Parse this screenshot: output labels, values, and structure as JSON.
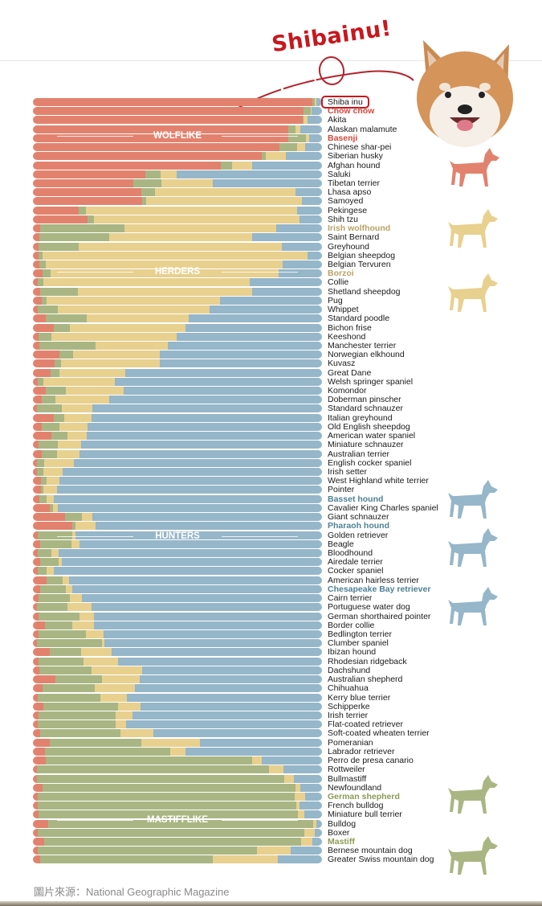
{
  "header": {
    "title": "Shibainu!"
  },
  "source": "圖片來源：National Geographic Magazine",
  "colors": {
    "wolf": "#e2826e",
    "mastiff": "#a9b683",
    "herder": "#e8d08f",
    "hunter": "#96b6c9"
  },
  "chart_data": {
    "type": "bar",
    "orientation": "horizontal-stacked-100",
    "series_names": [
      "Wolflike",
      "Mastifflike",
      "Herders",
      "Hunters"
    ],
    "group_labels": [
      "WOLFLIKE",
      "HERDERS",
      "HUNTERS",
      "MASTIFFLIKE"
    ],
    "xlim": [
      0,
      100
    ],
    "rows": [
      {
        "breed": "Shiba inu",
        "values": [
          96.7,
          0.7,
          0.7,
          1.9
        ],
        "boxed": true
      },
      {
        "breed": "Chow chow",
        "values": [
          93.7,
          2.3,
          0.5,
          3.5
        ],
        "highlight": "wolf"
      },
      {
        "breed": "Akita",
        "values": [
          93.2,
          0.3,
          1.4,
          5.1
        ]
      },
      {
        "breed": "Alaskan malamute",
        "values": [
          88.3,
          2.6,
          1.7,
          7.4
        ]
      },
      {
        "breed": "Basenji",
        "values": [
          88.3,
          6.1,
          1.1,
          4.5
        ],
        "highlight": "wolf"
      },
      {
        "breed": "Chinese shar-pei",
        "values": [
          85.3,
          6.1,
          2.9,
          5.7
        ]
      },
      {
        "breed": "Siberian husky",
        "values": [
          79.1,
          1.4,
          6.9,
          12.6
        ]
      },
      {
        "breed": "Afghan hound",
        "values": [
          65.1,
          3.7,
          6.9,
          24.3
        ]
      },
      {
        "breed": "Saluki",
        "values": [
          39.0,
          5.2,
          5.4,
          50.4
        ]
      },
      {
        "breed": "Tibetan terrier",
        "values": [
          34.7,
          9.8,
          17.8,
          37.7
        ]
      },
      {
        "breed": "Lhasa apso",
        "values": [
          37.6,
          4.7,
          48.4,
          9.3
        ]
      },
      {
        "breed": "Samoyed",
        "values": [
          37.8,
          1.5,
          53.8,
          6.9
        ]
      },
      {
        "breed": "Pekingese",
        "values": [
          15.9,
          2.4,
          73.1,
          8.6
        ]
      },
      {
        "breed": "Shih tzu",
        "values": [
          18.8,
          2.3,
          71.0,
          7.9
        ]
      },
      {
        "breed": "Irish wolfhound",
        "values": [
          2.5,
          29.3,
          52.4,
          15.8
        ],
        "highlight": "herder"
      },
      {
        "breed": "Saint Bernard",
        "values": [
          2.1,
          24.2,
          49.6,
          24.1
        ]
      },
      {
        "breed": "Greyhound",
        "values": [
          2.0,
          13.8,
          70.3,
          13.9
        ]
      },
      {
        "breed": "Belgian sheepdog",
        "values": [
          1.9,
          1.4,
          91.6,
          5.1
        ]
      },
      {
        "breed": "Belgian Tervuren",
        "values": [
          2.3,
          2.1,
          82.1,
          13.5
        ]
      },
      {
        "breed": "Borzoi",
        "values": [
          3.4,
          2.8,
          78.7,
          15.1
        ],
        "highlight": "herder"
      },
      {
        "breed": "Collie",
        "values": [
          1.6,
          2.1,
          71.3,
          25.0
        ]
      },
      {
        "breed": "Shetland sheepdog",
        "values": [
          2.5,
          13.0,
          60.2,
          24.3
        ]
      },
      {
        "breed": "Pug",
        "values": [
          3.0,
          1.6,
          60.1,
          35.3
        ]
      },
      {
        "breed": "Whippet",
        "values": [
          1.6,
          7.1,
          52.5,
          38.8
        ]
      },
      {
        "breed": "Standard poodle",
        "values": [
          4.5,
          14.0,
          35.5,
          46.0
        ]
      },
      {
        "breed": "Bichon frise",
        "values": [
          7.2,
          5.7,
          39.8,
          47.3
        ]
      },
      {
        "breed": "Keeshond",
        "values": [
          2.0,
          4.5,
          43.2,
          50.3
        ]
      },
      {
        "breed": "Manchester terrier",
        "values": [
          2.3,
          19.5,
          25.0,
          53.2
        ]
      },
      {
        "breed": "Norwegian elkhound",
        "values": [
          9.2,
          4.7,
          30.1,
          56.0
        ]
      },
      {
        "breed": "Kuvasz",
        "values": [
          7.5,
          2.2,
          34.1,
          56.2
        ]
      },
      {
        "breed": "Great Dane",
        "values": [
          6.2,
          3.1,
          22.6,
          68.1
        ]
      },
      {
        "breed": "Welsh springer spaniel",
        "values": [
          1.6,
          2.1,
          24.6,
          71.7
        ]
      },
      {
        "breed": "Komondor",
        "values": [
          4.5,
          7.0,
          19.8,
          68.7
        ]
      },
      {
        "breed": "Doberman pinscher",
        "values": [
          3.1,
          4.7,
          18.7,
          73.5
        ]
      },
      {
        "breed": "Standard schnauzer",
        "values": [
          1.4,
          8.5,
          10.6,
          79.5
        ]
      },
      {
        "breed": "Italian greyhound",
        "values": [
          7.3,
          3.6,
          9.5,
          79.6
        ]
      },
      {
        "breed": "Old English sheepdog",
        "values": [
          3.1,
          6.2,
          9.6,
          81.1
        ]
      },
      {
        "breed": "American water spaniel",
        "values": [
          6.4,
          5.5,
          6.8,
          81.3
        ]
      },
      {
        "breed": "Miniature schnauzer",
        "values": [
          1.9,
          6.8,
          8.0,
          83.3
        ]
      },
      {
        "breed": "Australian terrier",
        "values": [
          3.1,
          5.3,
          7.7,
          83.9
        ]
      },
      {
        "breed": "English cocker spaniel",
        "values": [
          1.4,
          2.6,
          10.2,
          85.8
        ]
      },
      {
        "breed": "Irish setter",
        "values": [
          1.4,
          2.3,
          6.7,
          89.6
        ]
      },
      {
        "breed": "West Highland white terrier",
        "values": [
          2.8,
          1.8,
          4.7,
          90.7
        ]
      },
      {
        "breed": "Pointer",
        "values": [
          2.8,
          0.9,
          4.6,
          91.7
        ]
      },
      {
        "breed": "Basset hound",
        "values": [
          2.3,
          2.3,
          2.5,
          92.9
        ],
        "highlight": "hunter"
      },
      {
        "breed": "Cavalier King Charles spaniel",
        "values": [
          5.8,
          1.2,
          1.5,
          91.5
        ]
      },
      {
        "breed": "Giant schnauzer",
        "values": [
          11.1,
          5.8,
          3.7,
          79.4
        ]
      },
      {
        "breed": "Pharaoh hound",
        "values": [
          13.5,
          1.1,
          7.2,
          78.2
        ],
        "highlight": "hunter"
      },
      {
        "breed": "Golden retriever",
        "values": [
          1.6,
          11.9,
          1.1,
          85.4
        ]
      },
      {
        "breed": "Beagle",
        "values": [
          2.5,
          10.7,
          3.0,
          83.8
        ]
      },
      {
        "breed": "Bloodhound",
        "values": [
          1.6,
          4.7,
          2.7,
          91.0
        ]
      },
      {
        "breed": "Airedale terrier",
        "values": [
          2.5,
          6.4,
          1.1,
          90.0
        ]
      },
      {
        "breed": "Cocker spaniel",
        "values": [
          1.6,
          3.2,
          2.4,
          92.8
        ]
      },
      {
        "breed": "American hairless terrier",
        "values": [
          4.6,
          5.8,
          2.2,
          87.4
        ]
      },
      {
        "breed": "Chesapeake Bay retriever",
        "values": [
          2.5,
          9.0,
          2.0,
          86.5
        ],
        "highlight": "hunter"
      },
      {
        "breed": "Cairn terrier",
        "values": [
          1.9,
          10.8,
          4.2,
          83.1
        ]
      },
      {
        "breed": "Portuguese water dog",
        "values": [
          1.4,
          10.5,
          8.3,
          79.8
        ]
      },
      {
        "breed": "German shorthaired pointer",
        "values": [
          2.0,
          14.0,
          5.0,
          79.0
        ]
      },
      {
        "breed": "Border collie",
        "values": [
          4.2,
          9.4,
          7.6,
          78.8
        ]
      },
      {
        "breed": "Bedlington terrier",
        "values": [
          1.9,
          16.5,
          6.1,
          75.5
        ]
      },
      {
        "breed": "Clumber spaniel",
        "values": [
          1.4,
          22.5,
          0.9,
          75.2
        ]
      },
      {
        "breed": "Ibizan hound",
        "values": [
          5.8,
          10.9,
          10.6,
          72.7
        ]
      },
      {
        "breed": "Rhodesian ridgeback",
        "values": [
          1.9,
          15.6,
          12.0,
          70.5
        ]
      },
      {
        "breed": "Dachshund",
        "values": [
          2.3,
          18.0,
          17.6,
          62.1
        ]
      },
      {
        "breed": "Australian shepherd",
        "values": [
          7.8,
          16.1,
          13.0,
          63.1
        ]
      },
      {
        "breed": "Chihuahua",
        "values": [
          3.4,
          17.9,
          14.0,
          64.7
        ]
      },
      {
        "breed": "Kerry blue terrier",
        "values": [
          1.6,
          21.6,
          9.3,
          67.5
        ]
      },
      {
        "breed": "Schipperke",
        "values": [
          3.6,
          25.9,
          7.6,
          62.9
        ]
      },
      {
        "breed": "Irish terrier",
        "values": [
          1.9,
          26.6,
          6.0,
          65.5
        ]
      },
      {
        "breed": "Flat-coated retriever",
        "values": [
          1.6,
          26.9,
          3.6,
          67.9
        ]
      },
      {
        "breed": "Soft-coated wheaten terrier",
        "values": [
          2.6,
          27.6,
          11.5,
          58.3
        ]
      },
      {
        "breed": "Pomeranian",
        "values": [
          5.7,
          31.9,
          20.3,
          42.1
        ]
      },
      {
        "breed": "Labrador retriever",
        "values": [
          4.2,
          43.4,
          5.3,
          47.1
        ]
      },
      {
        "breed": "Perro de presa canario",
        "values": [
          4.4,
          71.3,
          3.5,
          20.8
        ]
      },
      {
        "breed": "Rottweiler",
        "values": [
          1.4,
          80.2,
          5.1,
          13.3
        ]
      },
      {
        "breed": "Bullmastiff",
        "values": [
          1.4,
          85.6,
          3.3,
          9.7
        ]
      },
      {
        "breed": "Newfoundland",
        "values": [
          3.3,
          87.6,
          1.6,
          7.5
        ]
      },
      {
        "breed": "German shepherd",
        "values": [
          1.6,
          89.0,
          3.6,
          5.8
        ],
        "highlight": "mastiff"
      },
      {
        "breed": "French bulldog",
        "values": [
          1.6,
          89.6,
          1.0,
          7.8
        ]
      },
      {
        "breed": "Miniature bull terrier",
        "values": [
          1.9,
          89.8,
          2.1,
          6.2
        ]
      },
      {
        "breed": "Bulldog",
        "values": [
          5.2,
          91.7,
          1.2,
          1.9
        ]
      },
      {
        "breed": "Boxer",
        "values": [
          1.6,
          92.2,
          3.8,
          2.4
        ]
      },
      {
        "breed": "Mastiff",
        "values": [
          3.8,
          89.1,
          3.8,
          3.3
        ],
        "highlight": "mastiff"
      },
      {
        "breed": "Bernese mountain dog",
        "values": [
          1.6,
          76.0,
          11.5,
          10.9
        ]
      },
      {
        "breed": "Greater Swiss mountain dog",
        "values": [
          2.5,
          59.7,
          22.4,
          15.4
        ]
      }
    ]
  }
}
